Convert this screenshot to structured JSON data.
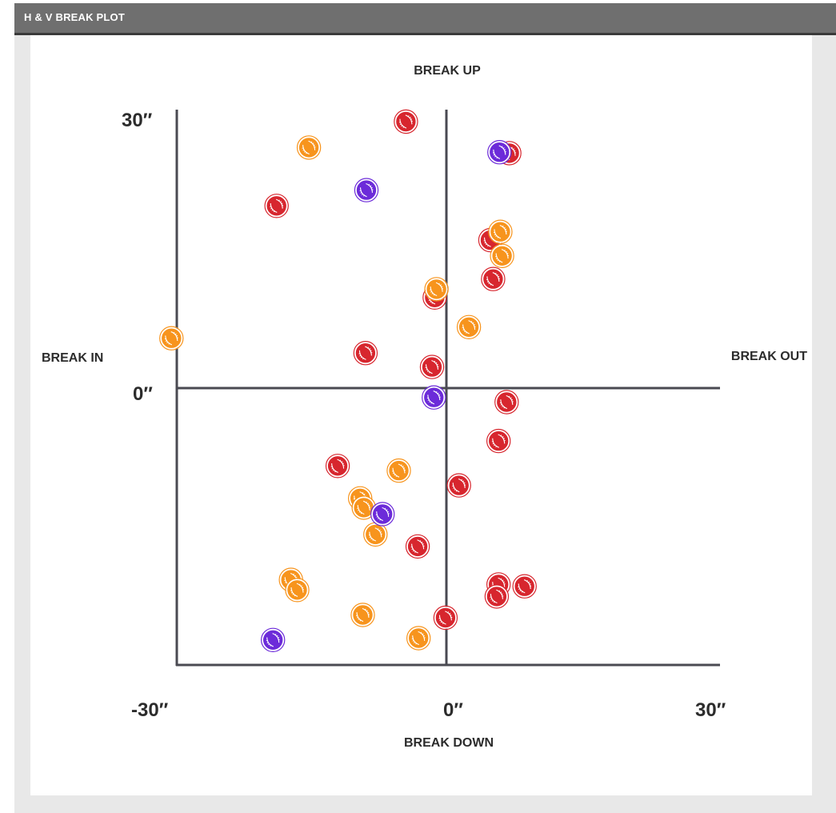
{
  "header": {
    "title": "H & V BREAK PLOT"
  },
  "chart_data": {
    "type": "scatter",
    "labels": {
      "top": "BREAK UP",
      "bottom": "BREAK DOWN",
      "left": "BREAK IN",
      "right": "BREAK OUT"
    },
    "x_ticks": [
      "-30″",
      "0″",
      "30″"
    ],
    "y_ticks": [
      "30″",
      "0″"
    ],
    "xlim": [
      -30,
      30
    ],
    "ylim": [
      -30,
      30
    ],
    "grid": false,
    "legend": "none",
    "series": [
      {
        "color": "#d7262e",
        "points": [
          [
            -4.5,
            28.7
          ],
          [
            7,
            25.3
          ],
          [
            -18.9,
            19.6
          ],
          [
            4.9,
            15.9
          ],
          [
            5.2,
            11.7
          ],
          [
            -1.3,
            9.7
          ],
          [
            -9,
            3.7
          ],
          [
            -1.6,
            2.2
          ],
          [
            6.7,
            -1.6
          ],
          [
            5.8,
            -5.8
          ],
          [
            -12.1,
            -8.5
          ],
          [
            1.4,
            -10.6
          ],
          [
            -3.2,
            -17.2
          ],
          [
            5.8,
            -21.3
          ],
          [
            8.7,
            -21.5
          ],
          [
            5.6,
            -22.6
          ],
          [
            -0.1,
            -24.9
          ]
        ]
      },
      {
        "color": "#f7941d",
        "points": [
          [
            -15.3,
            25.9
          ],
          [
            6,
            16.8
          ],
          [
            6.2,
            14.2
          ],
          [
            -1.1,
            10.6
          ],
          [
            2.5,
            6.5
          ],
          [
            -30.6,
            5.3
          ],
          [
            -5.3,
            -9
          ],
          [
            -9.6,
            -12
          ],
          [
            -9.2,
            -13
          ],
          [
            -7.9,
            -15.9
          ],
          [
            -17.3,
            -20.8
          ],
          [
            -16.6,
            -21.9
          ],
          [
            -9.3,
            -24.6
          ],
          [
            -3.1,
            -27.1
          ]
        ]
      },
      {
        "color": "#6c2bd9",
        "points": [
          [
            5.9,
            25.4
          ],
          [
            -8.9,
            21.3
          ],
          [
            -1.4,
            -1.1
          ],
          [
            -7.1,
            -13.7
          ],
          [
            -19.3,
            -27.3
          ]
        ]
      }
    ]
  }
}
